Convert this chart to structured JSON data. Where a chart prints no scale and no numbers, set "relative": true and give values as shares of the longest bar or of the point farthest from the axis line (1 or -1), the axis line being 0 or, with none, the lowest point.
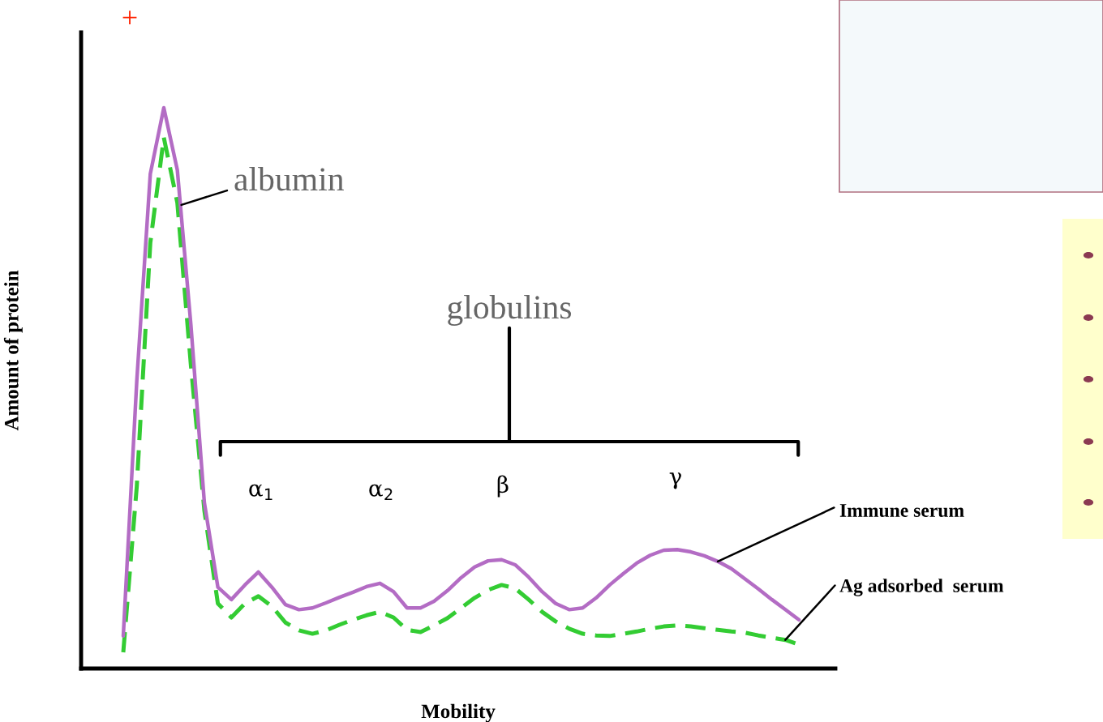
{
  "chart_data": {
    "type": "line",
    "relative": true,
    "xlabel": "Mobility",
    "ylabel": "Amount of protein",
    "categories": [
      null,
      null,
      null,
      null,
      null,
      null,
      null,
      null,
      null,
      null,
      null,
      null,
      null,
      null,
      null,
      null,
      null,
      null,
      null,
      null,
      null,
      null,
      null,
      null,
      null,
      null,
      null,
      null,
      null,
      null,
      null,
      null,
      null,
      null,
      null,
      null,
      null,
      null,
      null,
      null,
      null,
      null,
      null,
      null,
      null,
      null,
      null,
      null,
      null,
      null,
      null
    ],
    "series": [
      {
        "name": "Immune serum",
        "color": "#b36cc4",
        "line_style": "solid",
        "values": [
          0.058,
          0.513,
          0.882,
          1,
          0.889,
          0.614,
          0.296,
          0.145,
          0.123,
          0.149,
          0.172,
          0.145,
          0.114,
          0.105,
          0.108,
          0.117,
          0.127,
          0.136,
          0.146,
          0.152,
          0.137,
          0.108,
          0.108,
          0.12,
          0.139,
          0.162,
          0.181,
          0.192,
          0.194,
          0.185,
          0.163,
          0.137,
          0.116,
          0.105,
          0.108,
          0.126,
          0.149,
          0.169,
          0.188,
          0.202,
          0.211,
          0.212,
          0.208,
          0.201,
          0.191,
          0.178,
          0.16,
          0.142,
          0.123,
          0.105,
          0.087
        ]
      },
      {
        "name": "Ag adsorbed  serum",
        "color": "#33cc33",
        "line_style": "dashed",
        "values": [
          0.029,
          0.325,
          0.759,
          0.947,
          0.831,
          0.542,
          0.282,
          0.116,
          0.091,
          0.116,
          0.129,
          0.111,
          0.082,
          0.068,
          0.062,
          0.068,
          0.078,
          0.087,
          0.095,
          0.101,
          0.091,
          0.069,
          0.065,
          0.077,
          0.09,
          0.108,
          0.126,
          0.14,
          0.149,
          0.143,
          0.123,
          0.101,
          0.084,
          0.071,
          0.062,
          0.059,
          0.058,
          0.062,
          0.066,
          0.071,
          0.075,
          0.077,
          0.075,
          0.072,
          0.069,
          0.066,
          0.064,
          0.059,
          0.055,
          0.051,
          0.043
        ]
      }
    ],
    "annotations": [
      "+",
      "albumin",
      "globulins",
      "α$_{1}$",
      "α$_{2}$",
      "β",
      "γ"
    ]
  }
}
